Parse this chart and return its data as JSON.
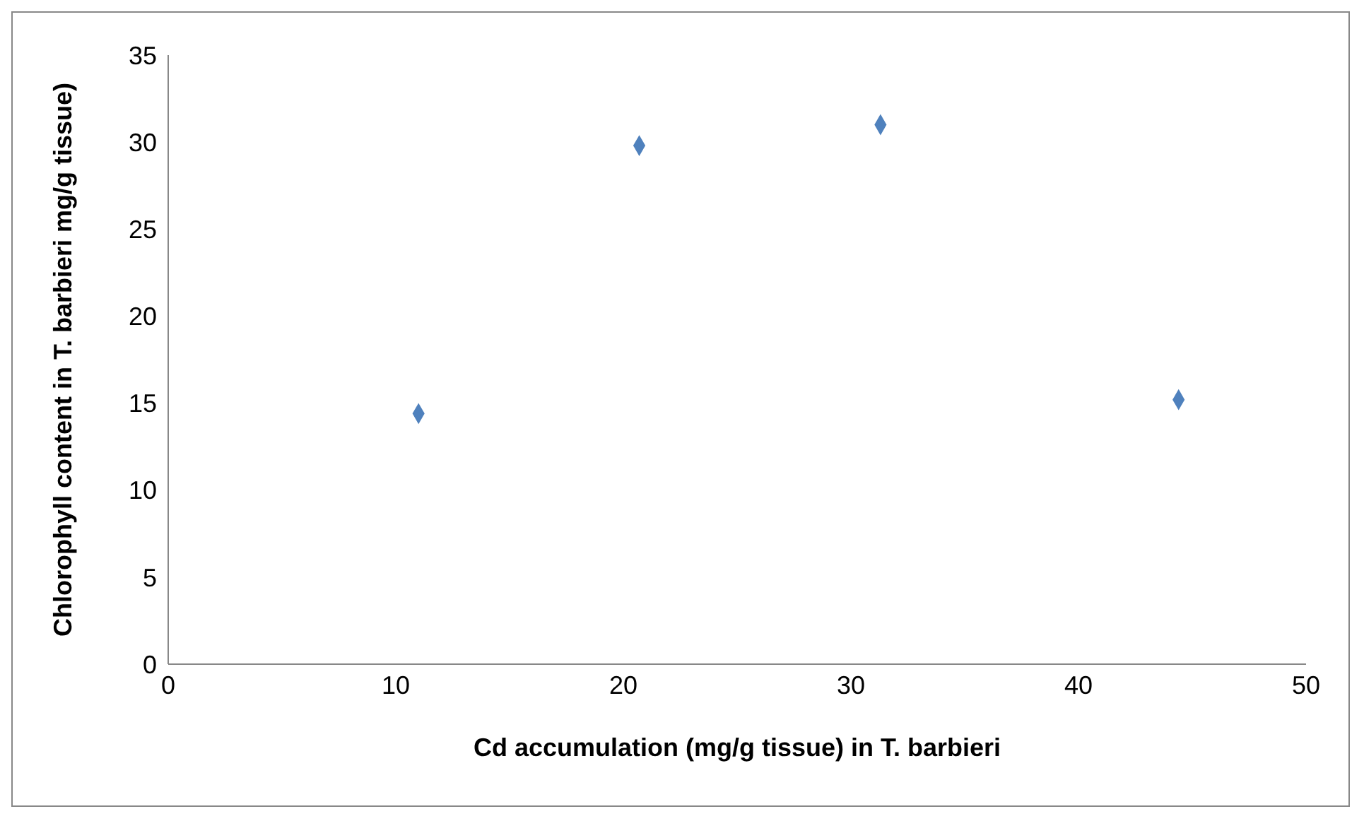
{
  "chart_data": {
    "type": "scatter",
    "xlabel": "Cd accumulation (mg/g tissue) in T. barbieri",
    "ylabel": "Chlorophyll content in T. barbieri mg/g  tissue)",
    "x": [
      11.0,
      20.7,
      31.3,
      44.4
    ],
    "series": [
      {
        "color": "#4f81bd",
        "values": [
          14.4,
          29.8,
          31.0,
          15.2
        ]
      }
    ],
    "xlim": [
      0,
      50
    ],
    "xticks": [
      0,
      10,
      20,
      30,
      40,
      50
    ],
    "ylim": [
      0,
      35
    ],
    "yticks": [
      0,
      5,
      10,
      15,
      20,
      25,
      30,
      35
    ],
    "grid": false,
    "legend": false,
    "marker": "diamond"
  }
}
